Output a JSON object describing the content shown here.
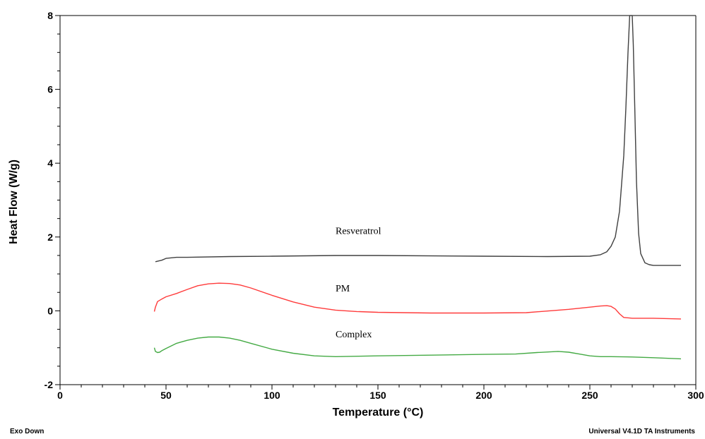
{
  "footer": {
    "left": "Exo Down",
    "right": "Universal V4.1D TA Instruments"
  },
  "chart_data": {
    "type": "line",
    "title": "",
    "xlabel": "Temperature (°C)",
    "ylabel": "Heat Flow (W/g)",
    "xlim": [
      0,
      300
    ],
    "ylim": [
      -2,
      8
    ],
    "xticks": [
      0,
      50,
      100,
      150,
      200,
      250,
      300
    ],
    "yticks": [
      -2,
      0,
      2,
      4,
      6,
      8
    ],
    "grid": false,
    "series": [
      {
        "name": "Resveratrol",
        "color": "#404040",
        "x": [
          45,
          48,
          50,
          55,
          60,
          80,
          100,
          130,
          150,
          200,
          230,
          250,
          255,
          258,
          260,
          262,
          264,
          266,
          267,
          268,
          268.8,
          269.5,
          270,
          270.5,
          271.2,
          272,
          273,
          274,
          276,
          278,
          280,
          285,
          293
        ],
        "y": [
          1.33,
          1.37,
          1.42,
          1.45,
          1.45,
          1.47,
          1.48,
          1.5,
          1.5,
          1.48,
          1.47,
          1.48,
          1.52,
          1.6,
          1.75,
          2.0,
          2.7,
          4.2,
          5.5,
          7.0,
          8.0,
          8.0,
          8.0,
          7.2,
          5.5,
          3.5,
          2.1,
          1.55,
          1.3,
          1.25,
          1.23,
          1.23,
          1.23
        ]
      },
      {
        "name": "PM",
        "color": "#ff3b3b",
        "x": [
          44.5,
          45,
          46,
          48,
          50,
          55,
          60,
          65,
          70,
          75,
          80,
          85,
          90,
          100,
          110,
          120,
          130,
          140,
          150,
          175,
          200,
          220,
          240,
          250,
          255,
          258,
          260,
          262,
          264,
          266,
          270,
          280,
          293
        ],
        "y": [
          -0.02,
          0.1,
          0.25,
          0.32,
          0.38,
          0.47,
          0.58,
          0.68,
          0.73,
          0.75,
          0.74,
          0.7,
          0.62,
          0.42,
          0.24,
          0.1,
          0.02,
          -0.02,
          -0.04,
          -0.06,
          -0.06,
          -0.05,
          0.04,
          0.1,
          0.13,
          0.14,
          0.12,
          0.05,
          -0.08,
          -0.18,
          -0.2,
          -0.2,
          -0.22
        ]
      },
      {
        "name": "Complex",
        "color": "#44aa44",
        "x": [
          44.5,
          45,
          46,
          47,
          48,
          50,
          55,
          60,
          65,
          70,
          75,
          80,
          85,
          90,
          100,
          110,
          120,
          130,
          150,
          175,
          200,
          215,
          225,
          235,
          240,
          245,
          250,
          255,
          260,
          270,
          280,
          293
        ],
        "y": [
          -1.0,
          -1.1,
          -1.13,
          -1.12,
          -1.08,
          -1.02,
          -0.88,
          -0.8,
          -0.74,
          -0.71,
          -0.71,
          -0.74,
          -0.8,
          -0.88,
          -1.04,
          -1.15,
          -1.22,
          -1.24,
          -1.22,
          -1.2,
          -1.18,
          -1.17,
          -1.13,
          -1.1,
          -1.12,
          -1.17,
          -1.22,
          -1.24,
          -1.24,
          -1.25,
          -1.27,
          -1.3
        ]
      }
    ]
  }
}
